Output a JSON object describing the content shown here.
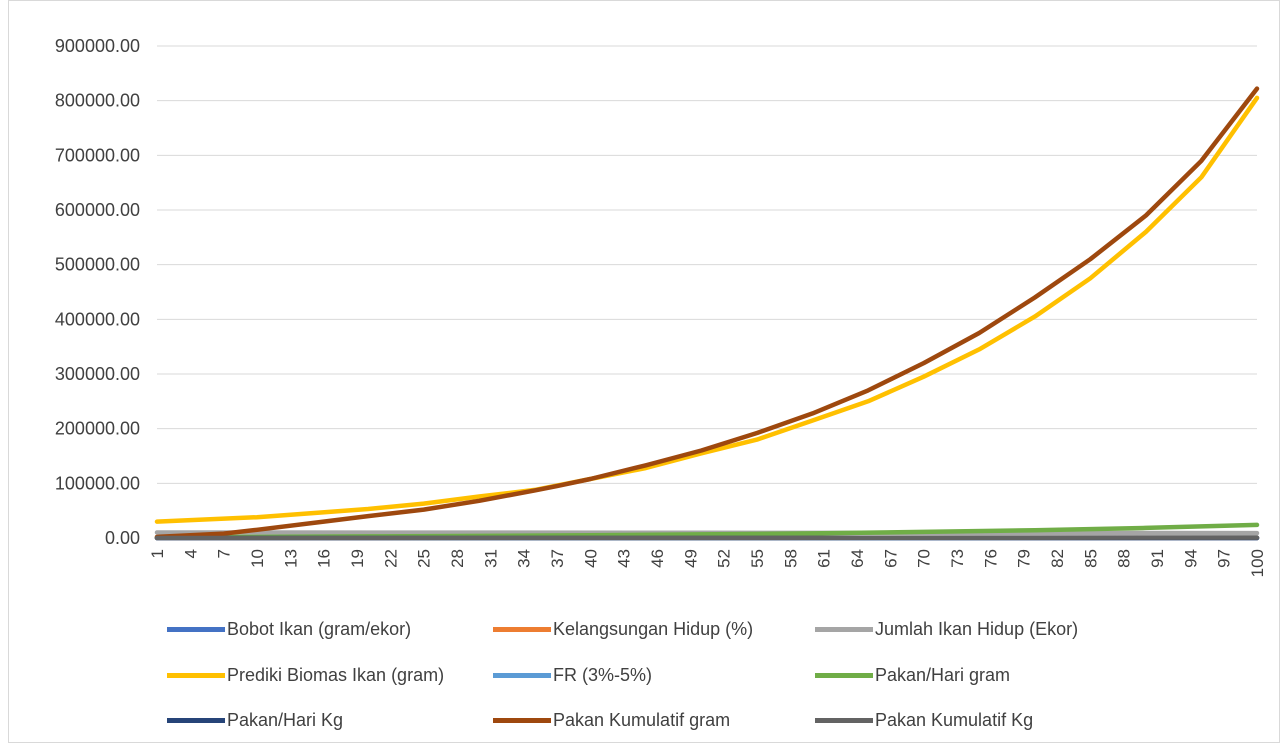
{
  "chart_data": {
    "type": "line",
    "x": {
      "from": 1,
      "to": 100,
      "tick_step": 3,
      "tick_labels": [
        "1",
        "4",
        "7",
        "10",
        "13",
        "16",
        "19",
        "22",
        "25",
        "28",
        "31",
        "34",
        "37",
        "40",
        "43",
        "46",
        "49",
        "52",
        "55",
        "58",
        "61",
        "64",
        "67",
        "70",
        "73",
        "76",
        "79",
        "82",
        "85",
        "88",
        "91",
        "94",
        "97",
        "100"
      ]
    },
    "y_ticks": [
      "900000.00",
      "800000.00",
      "700000.00",
      "600000.00",
      "500000.00",
      "400000.00",
      "300000.00",
      "200000.00",
      "100000.00",
      "0.00"
    ],
    "ylim": [
      0,
      900000
    ],
    "grid": true,
    "legend_position": "bottom",
    "series": [
      {
        "name": "Bobot Ikan (gram/ekor)",
        "color": "#4472c4",
        "points": [
          [
            1,
            3
          ],
          [
            25,
            6
          ],
          [
            50,
            15
          ],
          [
            75,
            35
          ],
          [
            100,
            80
          ]
        ]
      },
      {
        "name": "Kelangsungan Hidup (%)",
        "color": "#ed7d31",
        "points": [
          [
            1,
            100
          ],
          [
            50,
            95
          ],
          [
            100,
            90
          ]
        ]
      },
      {
        "name": "Jumlah Ikan Hidup (Ekor)",
        "color": "#a5a5a5",
        "points": [
          [
            1,
            10000
          ],
          [
            25,
            9800
          ],
          [
            50,
            9500
          ],
          [
            75,
            9200
          ],
          [
            100,
            9000
          ]
        ]
      },
      {
        "name": "Prediki Biomas Ikan (gram)",
        "color": "#ffc000",
        "points": [
          [
            1,
            30000
          ],
          [
            10,
            38000
          ],
          [
            20,
            53000
          ],
          [
            25,
            63000
          ],
          [
            30,
            76000
          ],
          [
            35,
            88000
          ],
          [
            40,
            108000
          ],
          [
            45,
            128000
          ],
          [
            50,
            155000
          ],
          [
            55,
            180000
          ],
          [
            60,
            215000
          ],
          [
            65,
            250000
          ],
          [
            70,
            295000
          ],
          [
            75,
            345000
          ],
          [
            80,
            405000
          ],
          [
            85,
            475000
          ],
          [
            90,
            560000
          ],
          [
            95,
            660000
          ],
          [
            100,
            805000
          ]
        ]
      },
      {
        "name": "FR (3%-5%)",
        "color": "#5b9bd5",
        "points": [
          [
            1,
            0.05
          ],
          [
            50,
            0.04
          ],
          [
            100,
            0.03
          ]
        ]
      },
      {
        "name": "Pakan/Hari gram",
        "color": "#70ad47",
        "points": [
          [
            1,
            1500
          ],
          [
            20,
            3000
          ],
          [
            40,
            5000
          ],
          [
            60,
            8500
          ],
          [
            80,
            14000
          ],
          [
            90,
            18500
          ],
          [
            100,
            24000
          ]
        ]
      },
      {
        "name": "Pakan/Hari Kg",
        "color": "#264478",
        "points": [
          [
            1,
            1.5
          ],
          [
            50,
            6
          ],
          [
            100,
            24
          ]
        ]
      },
      {
        "name": "Pakan Kumulatif gram",
        "color": "#9e480e",
        "points": [
          [
            1,
            2000
          ],
          [
            7,
            8000
          ],
          [
            10,
            15000
          ],
          [
            16,
            30000
          ],
          [
            20,
            40000
          ],
          [
            25,
            52000
          ],
          [
            30,
            68000
          ],
          [
            35,
            87000
          ],
          [
            37,
            95000
          ],
          [
            40,
            108000
          ],
          [
            45,
            133000
          ],
          [
            50,
            160000
          ],
          [
            55,
            192000
          ],
          [
            60,
            228000
          ],
          [
            65,
            270000
          ],
          [
            70,
            320000
          ],
          [
            75,
            375000
          ],
          [
            80,
            440000
          ],
          [
            85,
            510000
          ],
          [
            90,
            590000
          ],
          [
            95,
            690000
          ],
          [
            100,
            822000
          ]
        ]
      },
      {
        "name": "Pakan Kumulatif Kg",
        "color": "#636363",
        "points": [
          [
            1,
            2
          ],
          [
            50,
            160
          ],
          [
            100,
            822
          ]
        ]
      }
    ]
  }
}
